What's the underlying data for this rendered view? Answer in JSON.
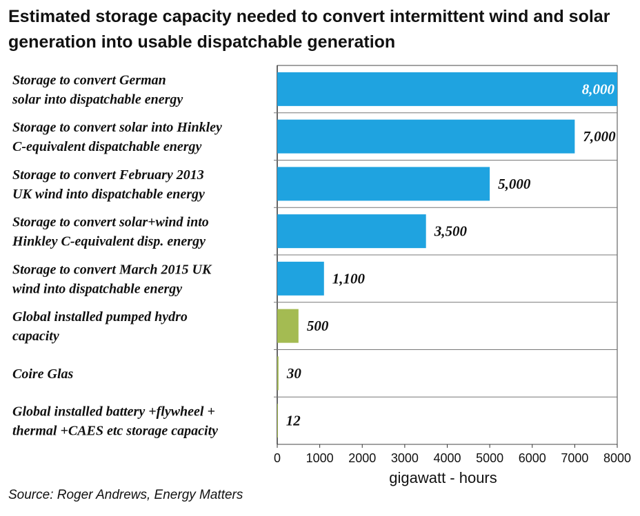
{
  "chart_data": {
    "type": "bar",
    "orientation": "horizontal",
    "title": "Estimated storage capacity needed to convert intermittent wind and solar generation into usable dispatchable generation",
    "categories": [
      [
        "Storage to convert German",
        "solar into dispatchable energy"
      ],
      [
        "Storage to convert solar into Hinkley",
        "C-equivalent dispatchable energy"
      ],
      [
        "Storage to convert February 2013",
        "UK wind into dispatchable energy"
      ],
      [
        "Storage to convert solar+wind into",
        "Hinkley C-equivalent disp. energy"
      ],
      [
        "Storage to convert March 2015 UK",
        "wind into dispatchable energy"
      ],
      [
        "Global installed pumped hydro",
        "capacity"
      ],
      [
        "Coire Glas"
      ],
      [
        "Global installed battery +flywheel +",
        "thermal +CAES etc storage capacity"
      ]
    ],
    "values": [
      8000,
      7000,
      5000,
      3500,
      1100,
      500,
      30,
      12
    ],
    "data_labels": [
      "8,000",
      "7,000",
      "5,000",
      "3,500",
      "1,100",
      "500",
      "30",
      "12"
    ],
    "bar_colors": [
      "#1fa3e0",
      "#1fa3e0",
      "#1fa3e0",
      "#1fa3e0",
      "#1fa3e0",
      "#a4bb52",
      "#a4bb52",
      "#a4bb52"
    ],
    "xlabel": "gigawatt - hours",
    "xlim": [
      0,
      8000
    ],
    "xticks": [
      0,
      1000,
      2000,
      3000,
      4000,
      5000,
      6000,
      7000,
      8000
    ],
    "grid": "horizontal category separators",
    "legend": "none"
  },
  "source": "Source: Roger Andrews, Energy Matters"
}
